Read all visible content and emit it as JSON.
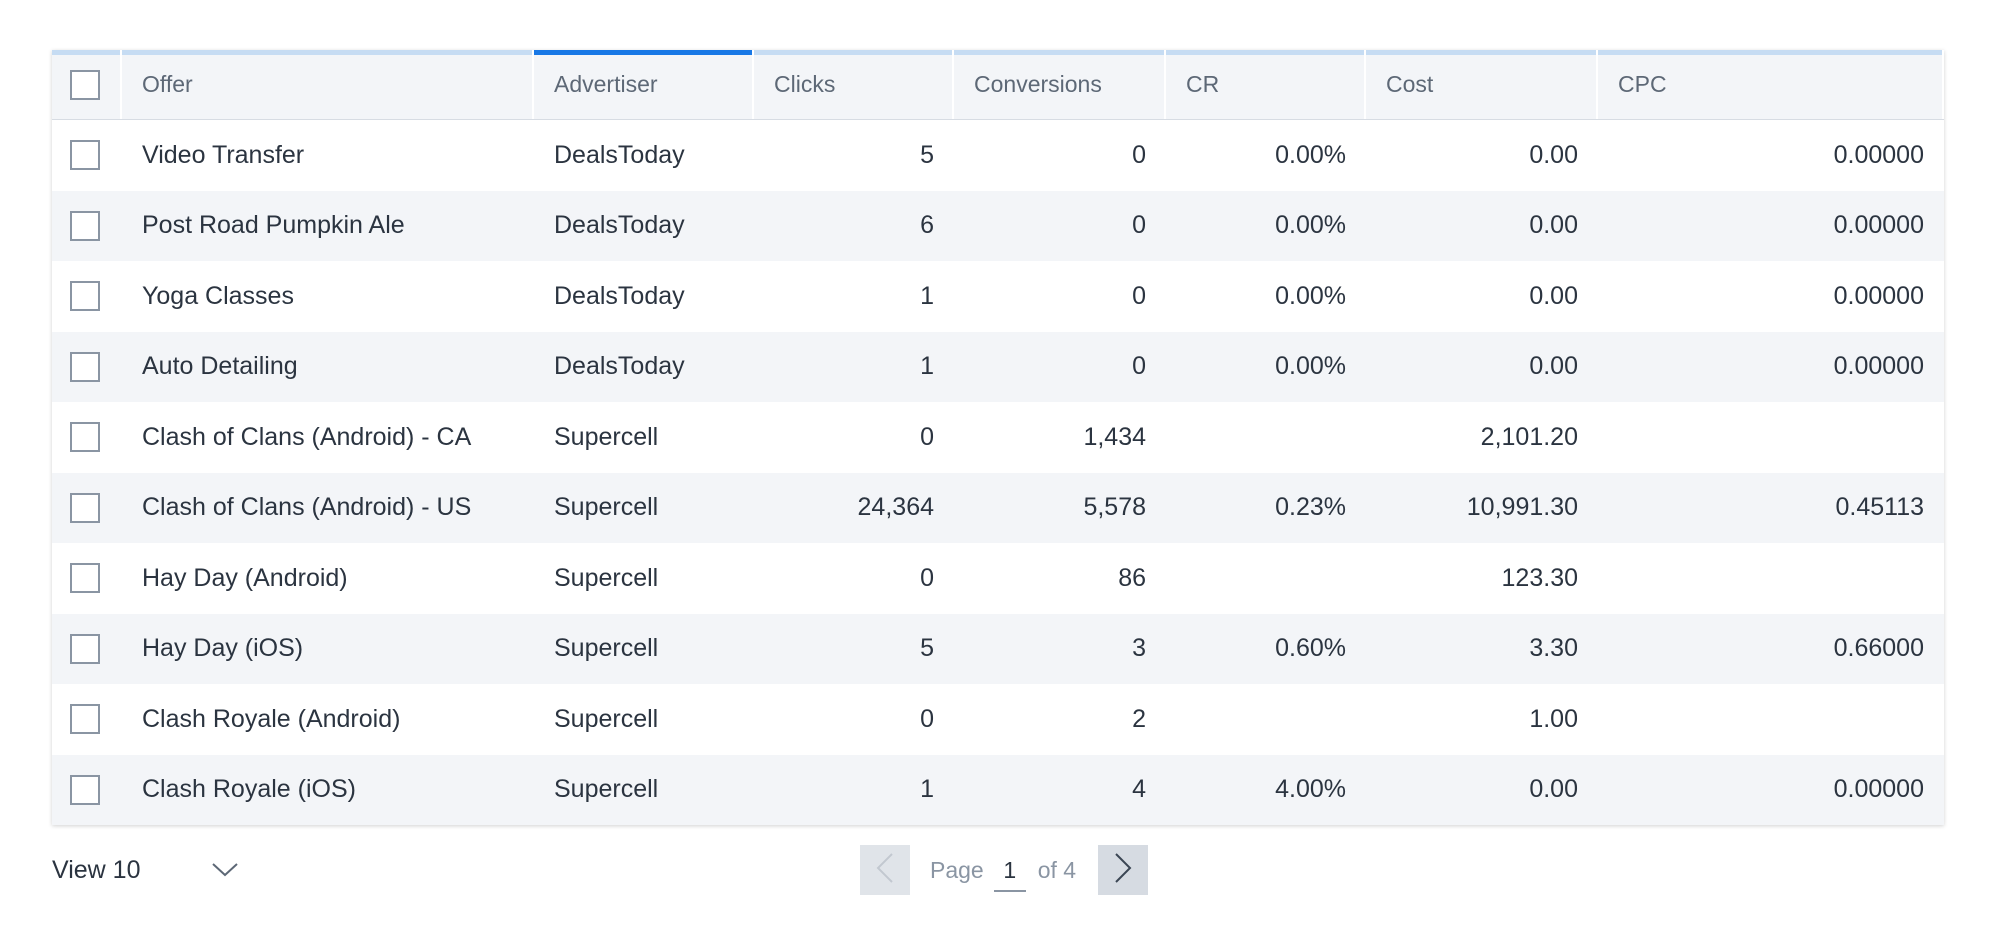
{
  "table": {
    "columns": [
      "Offer",
      "Advertiser",
      "Clicks",
      "Conversions",
      "CR",
      "Cost",
      "CPC"
    ],
    "active_column": "Advertiser",
    "rows": [
      {
        "offer": "Video Transfer",
        "advertiser": "DealsToday",
        "clicks": "5",
        "conversions": "0",
        "cr": "0.00%",
        "cost": "0.00",
        "cpc": "0.00000"
      },
      {
        "offer": "Post Road Pumpkin Ale",
        "advertiser": "DealsToday",
        "clicks": "6",
        "conversions": "0",
        "cr": "0.00%",
        "cost": "0.00",
        "cpc": "0.00000"
      },
      {
        "offer": "Yoga Classes",
        "advertiser": "DealsToday",
        "clicks": "1",
        "conversions": "0",
        "cr": "0.00%",
        "cost": "0.00",
        "cpc": "0.00000"
      },
      {
        "offer": "Auto Detailing",
        "advertiser": "DealsToday",
        "clicks": "1",
        "conversions": "0",
        "cr": "0.00%",
        "cost": "0.00",
        "cpc": "0.00000"
      },
      {
        "offer": "Clash of Clans (Android) - CA",
        "advertiser": "Supercell",
        "clicks": "0",
        "conversions": "1,434",
        "cr": "",
        "cost": "2,101.20",
        "cpc": ""
      },
      {
        "offer": "Clash of Clans (Android) - US",
        "advertiser": "Supercell",
        "clicks": "24,364",
        "conversions": "5,578",
        "cr": "0.23%",
        "cost": "10,991.30",
        "cpc": "0.45113"
      },
      {
        "offer": "Hay Day (Android)",
        "advertiser": "Supercell",
        "clicks": "0",
        "conversions": "86",
        "cr": "",
        "cost": "123.30",
        "cpc": ""
      },
      {
        "offer": "Hay Day (iOS)",
        "advertiser": "Supercell",
        "clicks": "5",
        "conversions": "3",
        "cr": "0.60%",
        "cost": "3.30",
        "cpc": "0.66000"
      },
      {
        "offer": "Clash Royale (Android)",
        "advertiser": "Supercell",
        "clicks": "0",
        "conversions": "2",
        "cr": "",
        "cost": "1.00",
        "cpc": ""
      },
      {
        "offer": "Clash Royale (iOS)",
        "advertiser": "Supercell",
        "clicks": "1",
        "conversions": "4",
        "cr": "4.00%",
        "cost": "0.00",
        "cpc": "0.00000"
      }
    ]
  },
  "footer": {
    "view_label": "View 10",
    "page_label": "Page",
    "current_page": "1",
    "of_label": "of 4"
  },
  "icons": {
    "select_all": "checkbox-icon",
    "view_dropdown": "chevron-down-icon",
    "prev": "chevron-left-icon",
    "next": "chevron-right-icon"
  },
  "colors": {
    "active_column_accent": "#1878e6",
    "column_accent": "#c6dcf3",
    "row_alt": "#f3f5f8"
  }
}
